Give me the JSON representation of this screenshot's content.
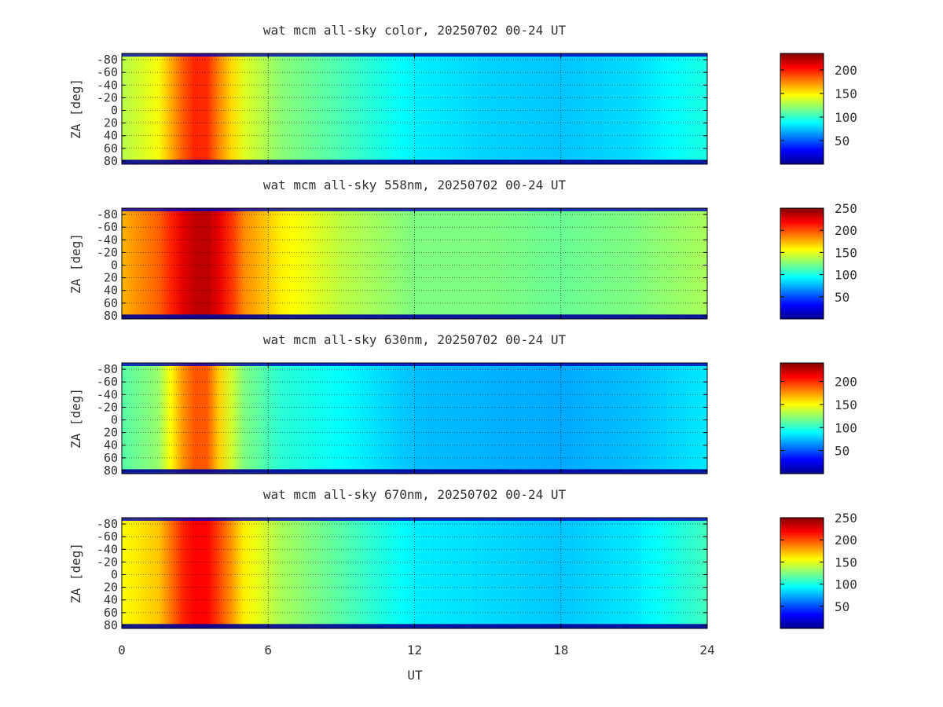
{
  "figure": {
    "xlabel": "UT"
  },
  "colormap": [
    "#00008f",
    "#0000ff",
    "#0080ff",
    "#00ffff",
    "#80ff80",
    "#ffff00",
    "#ff8000",
    "#ff0000",
    "#800000"
  ],
  "chart_data": [
    {
      "type": "heatmap",
      "title": "wat mcm all-sky color, 20250702 00-24 UT",
      "xlabel": "",
      "ylabel": "ZA [deg]",
      "xlim": [
        0,
        24
      ],
      "ylim": [
        -90,
        85
      ],
      "x_ticks": [
        "0",
        "6",
        "12",
        "18",
        "24"
      ],
      "y_ticks": [
        "-80",
        "-60",
        "-40",
        "-20",
        "0",
        "20",
        "40",
        "60",
        "80"
      ],
      "colorbar": {
        "range": [
          0,
          235
        ],
        "ticks": [
          "50",
          "100",
          "150",
          "200"
        ]
      },
      "grid": true,
      "profile": [
        {
          "t": 0.0,
          "v": 130
        },
        {
          "t": 1.5,
          "v": 145
        },
        {
          "t": 2.5,
          "v": 185
        },
        {
          "t": 3.3,
          "v": 205
        },
        {
          "t": 4.2,
          "v": 165
        },
        {
          "t": 5.0,
          "v": 140
        },
        {
          "t": 6.5,
          "v": 120
        },
        {
          "t": 9.0,
          "v": 105
        },
        {
          "t": 12.0,
          "v": 85
        },
        {
          "t": 15.0,
          "v": 78
        },
        {
          "t": 18.0,
          "v": 75
        },
        {
          "t": 21.0,
          "v": 80
        },
        {
          "t": 24.0,
          "v": 95
        }
      ]
    },
    {
      "type": "heatmap",
      "title": "wat mcm all-sky 558nm, 20250702 00-24 UT",
      "xlabel": "",
      "ylabel": "ZA [deg]",
      "xlim": [
        0,
        24
      ],
      "ylim": [
        -90,
        85
      ],
      "x_ticks": [
        "0",
        "6",
        "12",
        "18",
        "24"
      ],
      "y_ticks": [
        "-80",
        "-60",
        "-40",
        "-20",
        "0",
        "20",
        "40",
        "60",
        "80"
      ],
      "colorbar": {
        "range": [
          0,
          250
        ],
        "ticks": [
          "50",
          "100",
          "150",
          "200",
          "250"
        ]
      },
      "grid": true,
      "profile": [
        {
          "t": 0.0,
          "v": 175
        },
        {
          "t": 1.5,
          "v": 195
        },
        {
          "t": 2.5,
          "v": 225
        },
        {
          "t": 3.3,
          "v": 240
        },
        {
          "t": 4.2,
          "v": 220
        },
        {
          "t": 5.0,
          "v": 185
        },
        {
          "t": 6.5,
          "v": 160
        },
        {
          "t": 9.0,
          "v": 140
        },
        {
          "t": 12.0,
          "v": 125
        },
        {
          "t": 15.0,
          "v": 125
        },
        {
          "t": 18.0,
          "v": 120
        },
        {
          "t": 21.0,
          "v": 125
        },
        {
          "t": 24.0,
          "v": 135
        }
      ]
    },
    {
      "type": "heatmap",
      "title": "wat mcm all-sky 630nm, 20250702 00-24 UT",
      "xlabel": "",
      "ylabel": "ZA [deg]",
      "xlim": [
        0,
        24
      ],
      "ylim": [
        -90,
        85
      ],
      "x_ticks": [
        "0",
        "6",
        "12",
        "18",
        "24"
      ],
      "y_ticks": [
        "-80",
        "-60",
        "-40",
        "-20",
        "0",
        "20",
        "40",
        "60",
        "80"
      ],
      "colorbar": {
        "range": [
          0,
          240
        ],
        "ticks": [
          "50",
          "100",
          "150",
          "200"
        ]
      },
      "grid": true,
      "profile": [
        {
          "t": 0.0,
          "v": 110
        },
        {
          "t": 1.5,
          "v": 125
        },
        {
          "t": 2.5,
          "v": 175
        },
        {
          "t": 3.3,
          "v": 200
        },
        {
          "t": 4.2,
          "v": 150
        },
        {
          "t": 5.0,
          "v": 120
        },
        {
          "t": 6.5,
          "v": 100
        },
        {
          "t": 9.0,
          "v": 90
        },
        {
          "t": 12.0,
          "v": 75
        },
        {
          "t": 15.0,
          "v": 72
        },
        {
          "t": 18.0,
          "v": 70
        },
        {
          "t": 21.0,
          "v": 75
        },
        {
          "t": 24.0,
          "v": 85
        }
      ]
    },
    {
      "type": "heatmap",
      "title": "wat mcm all-sky 670nm, 20250702 00-24 UT",
      "xlabel": "UT",
      "ylabel": "ZA [deg]",
      "xlim": [
        0,
        24
      ],
      "ylim": [
        -90,
        85
      ],
      "x_ticks": [
        "0",
        "6",
        "12",
        "18",
        "24"
      ],
      "y_ticks": [
        "-80",
        "-60",
        "-40",
        "-20",
        "0",
        "20",
        "40",
        "60",
        "80"
      ],
      "colorbar": {
        "range": [
          0,
          250
        ],
        "ticks": [
          "50",
          "100",
          "150",
          "200",
          "250"
        ]
      },
      "grid": true,
      "profile": [
        {
          "t": 0.0,
          "v": 155
        },
        {
          "t": 1.5,
          "v": 170
        },
        {
          "t": 2.5,
          "v": 210
        },
        {
          "t": 3.3,
          "v": 225
        },
        {
          "t": 4.2,
          "v": 195
        },
        {
          "t": 5.0,
          "v": 160
        },
        {
          "t": 6.5,
          "v": 135
        },
        {
          "t": 9.0,
          "v": 115
        },
        {
          "t": 12.0,
          "v": 90
        },
        {
          "t": 15.0,
          "v": 85
        },
        {
          "t": 18.0,
          "v": 80
        },
        {
          "t": 21.0,
          "v": 88
        },
        {
          "t": 24.0,
          "v": 110
        }
      ]
    }
  ]
}
